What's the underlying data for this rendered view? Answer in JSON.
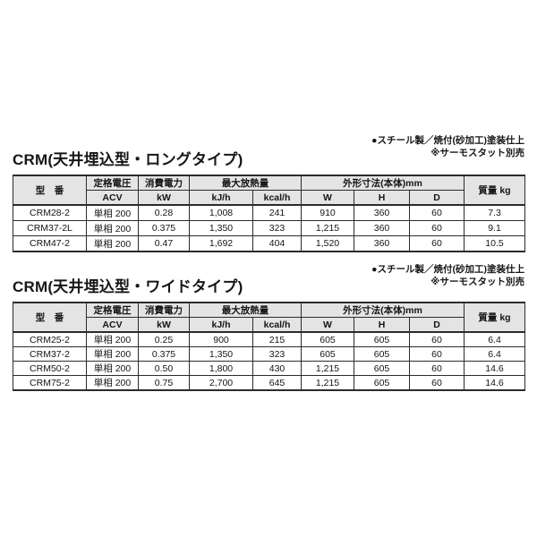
{
  "table_columns": {
    "model": "型　番",
    "voltage_top": "定格電圧",
    "voltage_unit": "ACV",
    "power_top": "消費電力",
    "power_unit": "kW",
    "heat_top": "最大放熱量",
    "heat_units": [
      "kJ/h",
      "kcal/h"
    ],
    "dims_top": "外形寸法(本体)mm",
    "dims_units": [
      "W",
      "H",
      "D"
    ],
    "weight": "質量 kg"
  },
  "colors": {
    "header_bg": "#e4e4e4",
    "border": "#2b2b2b",
    "text": "#141414",
    "page_bg": "#ffffff"
  },
  "sections": [
    {
      "title": "CRM(天井埋込型・ロングタイプ)",
      "notes": [
        "●スチール製／焼付(砂加工)塗装仕上",
        "※サーモスタット別売"
      ],
      "table": {
        "rows": [
          [
            "CRM28-2",
            "単相 200",
            "0.28",
            "1,008",
            "241",
            "910",
            "360",
            "60",
            "7.3"
          ],
          [
            "CRM37-2L",
            "単相 200",
            "0.375",
            "1,350",
            "323",
            "1,215",
            "360",
            "60",
            "9.1"
          ],
          [
            "CRM47-2",
            "単相 200",
            "0.47",
            "1,692",
            "404",
            "1,520",
            "360",
            "60",
            "10.5"
          ]
        ]
      }
    },
    {
      "title": "CRM(天井埋込型・ワイドタイプ)",
      "notes": [
        "●スチール製／焼付(砂加工)塗装仕上",
        "※サーモスタット別売"
      ],
      "table": {
        "rows": [
          [
            "CRM25-2",
            "単相 200",
            "0.25",
            "900",
            "215",
            "605",
            "605",
            "60",
            "6.4"
          ],
          [
            "CRM37-2",
            "単相 200",
            "0.375",
            "1,350",
            "323",
            "605",
            "605",
            "60",
            "6.4"
          ],
          [
            "CRM50-2",
            "単相 200",
            "0.50",
            "1,800",
            "430",
            "1,215",
            "605",
            "60",
            "14.6"
          ],
          [
            "CRM75-2",
            "単相 200",
            "0.75",
            "2,700",
            "645",
            "1,215",
            "605",
            "60",
            "14.6"
          ]
        ]
      }
    }
  ]
}
